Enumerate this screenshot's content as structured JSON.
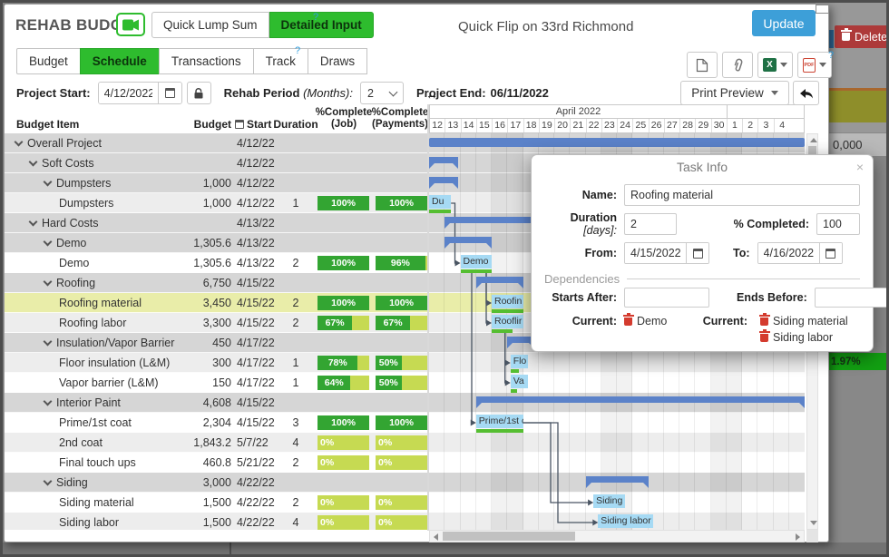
{
  "header": {
    "brand": "REHAB BUDGET",
    "quick_lump_sum": "Quick Lump Sum",
    "detailed_input": "Detailed Input",
    "help": "?",
    "project_title": "Quick Flip on 33rd Richmond",
    "update_label": "Update"
  },
  "tabs": [
    {
      "label": "Budget",
      "active": false
    },
    {
      "label": "Schedule",
      "active": true
    },
    {
      "label": "Transactions",
      "active": false
    },
    {
      "label": "Track",
      "active": false
    },
    {
      "label": "Draws",
      "active": false
    }
  ],
  "controls": {
    "project_start_label": "Project Start:",
    "project_start_value": "4/12/2022",
    "rehab_period_label": "Rehab Period",
    "rehab_period_note": "(Months):",
    "rehab_period_value": "2",
    "project_end_label": "Project End:",
    "project_end_value": "06/11/2022",
    "print_preview_label": "Print Preview",
    "resize_glyph": "↔"
  },
  "table": {
    "headers": {
      "item": "Budget Item",
      "budget": "Budget",
      "start": "Start",
      "duration": "Duration",
      "job_line1": "%Complete",
      "job_line2": "(Job)",
      "pay_line1": "%Complete",
      "pay_line2": "(Payments)"
    },
    "rows": [
      {
        "name": "Overall Project",
        "level": 0,
        "group": true,
        "budget": "",
        "start": "4/12/22",
        "duration": "",
        "bar": {
          "type": "plain",
          "from": 0,
          "len": 24
        }
      },
      {
        "name": "Soft Costs",
        "level": 1,
        "group": true,
        "budget": "",
        "start": "4/12/22",
        "duration": "",
        "bar": {
          "type": "summary",
          "from": 0,
          "len": 1.85
        }
      },
      {
        "name": "Dumpsters",
        "level": 2,
        "group": true,
        "budget": "1,000",
        "start": "4/12/22",
        "duration": "",
        "bar": {
          "type": "summary",
          "from": 0,
          "len": 1.85
        }
      },
      {
        "name": "Dumpsters",
        "level": 3,
        "group": false,
        "shade": true,
        "budget": "1,000",
        "start": "4/12/22",
        "duration": "1",
        "job": 100,
        "pay": 100,
        "bar": {
          "type": "task",
          "from": 0,
          "len": 1.4,
          "label": "Du",
          "progress": 100
        }
      },
      {
        "name": "Hard Costs",
        "level": 1,
        "group": true,
        "budget": "",
        "start": "4/13/22",
        "duration": "",
        "bar": {
          "type": "summary",
          "from": 1,
          "len": 23
        }
      },
      {
        "name": "Demo",
        "level": 2,
        "group": true,
        "budget": "1,305.6",
        "start": "4/13/22",
        "duration": "",
        "bar": {
          "type": "summary",
          "from": 1,
          "len": 3
        }
      },
      {
        "name": "Demo",
        "level": 3,
        "group": false,
        "budget": "1,305.6",
        "start": "4/13/22",
        "duration": "2",
        "job": 100,
        "pay": 96,
        "bar": {
          "type": "task",
          "from": 2,
          "len": 2,
          "label": "Demo",
          "progress": 100
        }
      },
      {
        "name": "Roofing",
        "level": 2,
        "group": true,
        "budget": "6,750",
        "start": "4/15/22",
        "duration": "",
        "bar": {
          "type": "summary",
          "from": 3,
          "len": 3
        }
      },
      {
        "name": "Roofing material",
        "level": 3,
        "group": false,
        "highlight": true,
        "budget": "3,450",
        "start": "4/15/22",
        "duration": "2",
        "job": 100,
        "pay": 100,
        "bar": {
          "type": "task",
          "from": 4,
          "len": 2,
          "label": "Roofin",
          "progress": 100
        }
      },
      {
        "name": "Roofing labor",
        "level": 3,
        "group": false,
        "shade": true,
        "budget": "3,300",
        "start": "4/15/22",
        "duration": "2",
        "job": 67,
        "pay": 67,
        "bar": {
          "type": "task",
          "from": 4,
          "len": 2,
          "label": "Rooflir",
          "progress": 67
        }
      },
      {
        "name": "Insulation/Vapor Barrier",
        "level": 2,
        "group": true,
        "budget": "450",
        "start": "4/17/22",
        "duration": "",
        "bar": {
          "type": "summary",
          "from": 5,
          "len": 1.7
        }
      },
      {
        "name": "Floor insulation (L&M)",
        "level": 3,
        "group": false,
        "shade": true,
        "budget": "300",
        "start": "4/17/22",
        "duration": "1",
        "job": 78,
        "pay": 50,
        "bar": {
          "type": "task",
          "from": 5.2,
          "len": 1.1,
          "label": "Flo",
          "progress": 50
        }
      },
      {
        "name": "Vapor barrier (L&M)",
        "level": 3,
        "group": false,
        "budget": "150",
        "start": "4/17/22",
        "duration": "1",
        "job": 64,
        "pay": 50,
        "bar": {
          "type": "task",
          "from": 5.2,
          "len": 1.1,
          "label": "Va",
          "progress": 40
        }
      },
      {
        "name": "Interior Paint",
        "level": 2,
        "group": true,
        "budget": "4,608",
        "start": "4/15/22",
        "duration": "",
        "bar": {
          "type": "summary",
          "from": 3,
          "len": 21
        }
      },
      {
        "name": "Prime/1st coat",
        "level": 3,
        "group": false,
        "budget": "2,304",
        "start": "4/15/22",
        "duration": "3",
        "job": 100,
        "pay": 100,
        "bar": {
          "type": "task",
          "from": 3,
          "len": 3,
          "label": "Prime/1st c",
          "progress": 100
        }
      },
      {
        "name": "2nd coat",
        "level": 3,
        "group": false,
        "shade": true,
        "budget": "1,843.2",
        "start": "5/7/22",
        "duration": "4",
        "job": 0,
        "pay": 0
      },
      {
        "name": "Final touch ups",
        "level": 3,
        "group": false,
        "budget": "460.8",
        "start": "5/21/22",
        "duration": "2",
        "job": 0,
        "pay": 0
      },
      {
        "name": "Siding",
        "level": 2,
        "group": true,
        "budget": "3,000",
        "start": "4/22/22",
        "duration": "",
        "bar": {
          "type": "summary",
          "from": 10,
          "len": 4
        }
      },
      {
        "name": "Siding material",
        "level": 3,
        "group": false,
        "budget": "1,500",
        "start": "4/22/22",
        "duration": "2",
        "job": 0,
        "pay": 0,
        "bar": {
          "type": "task",
          "from": 10.5,
          "len": 2,
          "label": "Siding",
          "progress": 0
        }
      },
      {
        "name": "Siding labor",
        "level": 3,
        "group": false,
        "shade": true,
        "budget": "1,500",
        "start": "4/22/22",
        "duration": "4",
        "job": 0,
        "pay": 0,
        "bar": {
          "type": "task",
          "from": 10.8,
          "len": 3.5,
          "label": "Siding labor",
          "progress": 0
        }
      }
    ]
  },
  "gantt": {
    "month_label": "April 2022",
    "month_span": 19,
    "days": [
      "12",
      "13",
      "14",
      "15",
      "16",
      "17",
      "18",
      "19",
      "20",
      "21",
      "22",
      "23",
      "24",
      "25",
      "26",
      "27",
      "28",
      "29",
      "30",
      "1",
      "2",
      "3",
      "4"
    ],
    "weekend_cols": [
      4,
      5,
      11,
      12,
      18,
      19
    ],
    "connectors": [
      {
        "from": 3,
        "to": 6
      },
      {
        "from": 6,
        "to": 8
      },
      {
        "from": 6,
        "to": 9
      },
      {
        "from": 6,
        "to": 14,
        "vx": 47
      },
      {
        "from": 9,
        "to": 11
      },
      {
        "from": 9,
        "to": 12
      },
      {
        "from": 14,
        "to": 18,
        "vx": 134
      },
      {
        "from": 14,
        "to": 19,
        "vx": 142
      }
    ]
  },
  "modal": {
    "title": "Task Info",
    "close_glyph": "×",
    "name_label": "Name:",
    "name_value": "Roofing material",
    "duration_label": "Duration",
    "duration_note": "[days]:",
    "duration_value": "2",
    "completed_label": "% Completed:",
    "completed_value": "100",
    "from_label": "From:",
    "from_value": "4/15/2022",
    "to_label": "To:",
    "to_value": "4/16/2022",
    "dependencies_title": "Dependencies",
    "starts_after_label": "Starts After:",
    "ends_before_label": "Ends Before:",
    "current_label": "Current:",
    "starts_current": [
      "Demo"
    ],
    "ends_current": [
      "Siding material",
      "Siding labor"
    ]
  },
  "background": {
    "delete_label": "Delete",
    "amount_fragment": "0,000",
    "percent_fragment": "1.97%"
  },
  "colors": {
    "accent_green": "#2ebc2e",
    "bar_green": "#33a532",
    "bar_light_green": "#c6da52",
    "update_blue": "#3d9fd8",
    "gantt_blue": "#5b82c9",
    "task_blue": "#a6daf4",
    "progress_green": "#55be31",
    "delete_red": "#ad3a3a",
    "highlight_row": "#e9eda9",
    "group_row": "#d6d6d6",
    "shade_row": "#ededed"
  }
}
